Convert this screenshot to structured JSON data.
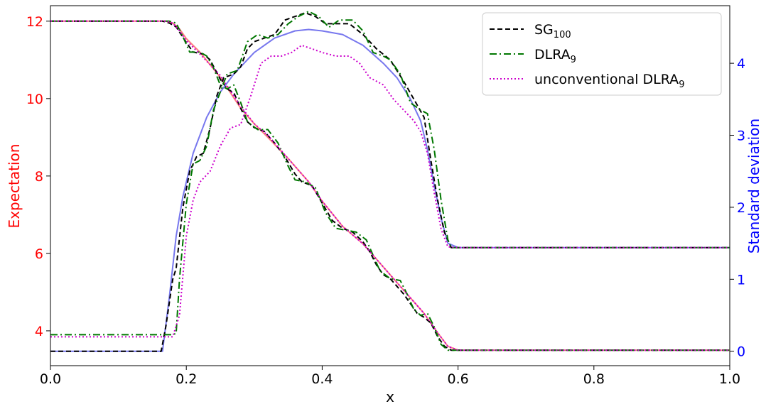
{
  "chart_data": {
    "type": "line",
    "xlabel": "x",
    "ylabel_left": "Expectation",
    "ylabel_right": "Standard deviation",
    "xlim": [
      0.0,
      1.0
    ],
    "ylim_left": [
      3.1,
      12.4
    ],
    "ylim_right": [
      -0.2,
      4.8
    ],
    "xticks": [
      {
        "value": 0.0,
        "label": "0.0"
      },
      {
        "value": 0.2,
        "label": "0.2"
      },
      {
        "value": 0.4,
        "label": "0.4"
      },
      {
        "value": 0.6,
        "label": "0.6"
      },
      {
        "value": 0.8,
        "label": "0.8"
      },
      {
        "value": 1.0,
        "label": "1.0"
      }
    ],
    "yticks_left": [
      {
        "value": 4,
        "label": "4"
      },
      {
        "value": 6,
        "label": "6"
      },
      {
        "value": 8,
        "label": "8"
      },
      {
        "value": 10,
        "label": "10"
      },
      {
        "value": 12,
        "label": "12"
      }
    ],
    "yticks_right": [
      {
        "value": 0,
        "label": "0"
      },
      {
        "value": 1,
        "label": "1"
      },
      {
        "value": 2,
        "label": "2"
      },
      {
        "value": 3,
        "label": "3"
      },
      {
        "value": 4,
        "label": "4"
      }
    ],
    "grid": false,
    "legend_placement": "top-right",
    "legend": [
      {
        "base": "SG",
        "sub": "100",
        "style": "dashed",
        "color": "#000000"
      },
      {
        "base": "DLRA",
        "sub": "9",
        "style": "dashdot",
        "color": "#007700"
      },
      {
        "base": "unconventional DLRA",
        "sub": "9",
        "style": "dotted",
        "color": "#cc00cc"
      }
    ],
    "colors": {
      "expectation_axis": "#ff0000",
      "std_axis": "#0000ff"
    },
    "series": [
      {
        "axis": "left",
        "style": "solid",
        "color": "#ff7f7f",
        "points": [
          [
            0.0,
            12.0
          ],
          [
            0.17,
            12.0
          ],
          [
            0.18,
            11.95
          ],
          [
            0.19,
            11.8
          ],
          [
            0.2,
            11.55
          ],
          [
            0.22,
            11.2
          ],
          [
            0.25,
            10.55
          ],
          [
            0.28,
            9.75
          ],
          [
            0.3,
            9.35
          ],
          [
            0.32,
            9.0
          ],
          [
            0.35,
            8.45
          ],
          [
            0.38,
            7.85
          ],
          [
            0.4,
            7.35
          ],
          [
            0.43,
            6.7
          ],
          [
            0.46,
            6.25
          ],
          [
            0.49,
            5.65
          ],
          [
            0.52,
            5.05
          ],
          [
            0.55,
            4.45
          ],
          [
            0.57,
            3.95
          ],
          [
            0.585,
            3.6
          ],
          [
            0.6,
            3.5
          ],
          [
            1.0,
            3.5
          ]
        ]
      },
      {
        "axis": "left",
        "style": "dashed",
        "color": "#000000",
        "points": [
          [
            0.0,
            12.0
          ],
          [
            0.165,
            12.0
          ],
          [
            0.175,
            11.95
          ],
          [
            0.185,
            11.85
          ],
          [
            0.2,
            11.45
          ],
          [
            0.21,
            11.2
          ],
          [
            0.225,
            11.15
          ],
          [
            0.235,
            11.0
          ],
          [
            0.25,
            10.5
          ],
          [
            0.26,
            10.25
          ],
          [
            0.27,
            10.15
          ],
          [
            0.28,
            9.75
          ],
          [
            0.29,
            9.4
          ],
          [
            0.3,
            9.25
          ],
          [
            0.315,
            9.15
          ],
          [
            0.33,
            8.85
          ],
          [
            0.345,
            8.5
          ],
          [
            0.36,
            8.05
          ],
          [
            0.37,
            7.85
          ],
          [
            0.385,
            7.75
          ],
          [
            0.4,
            7.3
          ],
          [
            0.415,
            6.85
          ],
          [
            0.43,
            6.65
          ],
          [
            0.445,
            6.55
          ],
          [
            0.46,
            6.3
          ],
          [
            0.47,
            6.05
          ],
          [
            0.48,
            5.7
          ],
          [
            0.49,
            5.45
          ],
          [
            0.5,
            5.35
          ],
          [
            0.51,
            5.15
          ],
          [
            0.52,
            4.95
          ],
          [
            0.53,
            4.7
          ],
          [
            0.54,
            4.45
          ],
          [
            0.55,
            4.35
          ],
          [
            0.56,
            4.2
          ],
          [
            0.57,
            3.85
          ],
          [
            0.58,
            3.6
          ],
          [
            0.59,
            3.5
          ],
          [
            1.0,
            3.5
          ]
        ]
      },
      {
        "axis": "left",
        "style": "dashdot",
        "color": "#007700",
        "points": [
          [
            0.0,
            12.0
          ],
          [
            0.175,
            12.0
          ],
          [
            0.185,
            11.95
          ],
          [
            0.195,
            11.6
          ],
          [
            0.205,
            11.2
          ],
          [
            0.22,
            11.2
          ],
          [
            0.23,
            11.1
          ],
          [
            0.24,
            10.8
          ],
          [
            0.25,
            10.35
          ],
          [
            0.26,
            10.25
          ],
          [
            0.27,
            10.35
          ],
          [
            0.28,
            9.9
          ],
          [
            0.29,
            9.4
          ],
          [
            0.305,
            9.2
          ],
          [
            0.32,
            9.2
          ],
          [
            0.335,
            8.85
          ],
          [
            0.35,
            8.25
          ],
          [
            0.36,
            7.9
          ],
          [
            0.375,
            7.85
          ],
          [
            0.39,
            7.7
          ],
          [
            0.405,
            7.05
          ],
          [
            0.42,
            6.65
          ],
          [
            0.435,
            6.6
          ],
          [
            0.45,
            6.55
          ],
          [
            0.465,
            6.35
          ],
          [
            0.475,
            5.95
          ],
          [
            0.485,
            5.55
          ],
          [
            0.5,
            5.35
          ],
          [
            0.515,
            5.3
          ],
          [
            0.525,
            4.95
          ],
          [
            0.535,
            4.55
          ],
          [
            0.545,
            4.4
          ],
          [
            0.555,
            4.45
          ],
          [
            0.565,
            4.1
          ],
          [
            0.575,
            3.65
          ],
          [
            0.585,
            3.5
          ],
          [
            1.0,
            3.5
          ]
        ]
      },
      {
        "axis": "left",
        "style": "dotted",
        "color": "#cc00cc",
        "points": [
          [
            0.0,
            12.0
          ],
          [
            0.17,
            12.0
          ],
          [
            0.18,
            11.95
          ],
          [
            0.19,
            11.75
          ],
          [
            0.2,
            11.5
          ],
          [
            0.22,
            11.15
          ],
          [
            0.25,
            10.6
          ],
          [
            0.28,
            9.8
          ],
          [
            0.3,
            9.35
          ],
          [
            0.32,
            9.05
          ],
          [
            0.35,
            8.45
          ],
          [
            0.38,
            7.85
          ],
          [
            0.4,
            7.35
          ],
          [
            0.43,
            6.7
          ],
          [
            0.46,
            6.25
          ],
          [
            0.49,
            5.65
          ],
          [
            0.52,
            5.05
          ],
          [
            0.55,
            4.45
          ],
          [
            0.57,
            3.95
          ],
          [
            0.585,
            3.6
          ],
          [
            0.6,
            3.5
          ],
          [
            1.0,
            3.5
          ]
        ]
      },
      {
        "axis": "right",
        "style": "solid",
        "color": "#7777ee",
        "points": [
          [
            0.0,
            0.0
          ],
          [
            0.165,
            0.0
          ],
          [
            0.175,
            0.75
          ],
          [
            0.185,
            1.6
          ],
          [
            0.195,
            2.15
          ],
          [
            0.21,
            2.75
          ],
          [
            0.23,
            3.25
          ],
          [
            0.25,
            3.6
          ],
          [
            0.27,
            3.85
          ],
          [
            0.3,
            4.15
          ],
          [
            0.33,
            4.35
          ],
          [
            0.36,
            4.45
          ],
          [
            0.38,
            4.47
          ],
          [
            0.4,
            4.45
          ],
          [
            0.43,
            4.4
          ],
          [
            0.46,
            4.25
          ],
          [
            0.49,
            4.0
          ],
          [
            0.51,
            3.8
          ],
          [
            0.53,
            3.5
          ],
          [
            0.545,
            3.2
          ],
          [
            0.555,
            2.8
          ],
          [
            0.565,
            2.3
          ],
          [
            0.575,
            1.85
          ],
          [
            0.585,
            1.5
          ],
          [
            0.6,
            1.44
          ],
          [
            1.0,
            1.44
          ]
        ]
      },
      {
        "axis": "right",
        "style": "dashed",
        "color": "#000000",
        "points": [
          [
            0.0,
            0.0
          ],
          [
            0.163,
            0.0
          ],
          [
            0.17,
            0.35
          ],
          [
            0.18,
            1.0
          ],
          [
            0.185,
            1.15
          ],
          [
            0.195,
            2.0
          ],
          [
            0.205,
            2.5
          ],
          [
            0.215,
            2.7
          ],
          [
            0.225,
            2.75
          ],
          [
            0.235,
            3.1
          ],
          [
            0.245,
            3.55
          ],
          [
            0.255,
            3.8
          ],
          [
            0.27,
            3.85
          ],
          [
            0.28,
            3.95
          ],
          [
            0.29,
            4.2
          ],
          [
            0.3,
            4.3
          ],
          [
            0.315,
            4.35
          ],
          [
            0.33,
            4.4
          ],
          [
            0.345,
            4.6
          ],
          [
            0.36,
            4.65
          ],
          [
            0.375,
            4.7
          ],
          [
            0.39,
            4.65
          ],
          [
            0.405,
            4.55
          ],
          [
            0.42,
            4.55
          ],
          [
            0.44,
            4.55
          ],
          [
            0.46,
            4.4
          ],
          [
            0.48,
            4.2
          ],
          [
            0.5,
            4.05
          ],
          [
            0.52,
            3.75
          ],
          [
            0.535,
            3.5
          ],
          [
            0.55,
            3.25
          ],
          [
            0.56,
            2.65
          ],
          [
            0.57,
            2.1
          ],
          [
            0.58,
            1.65
          ],
          [
            0.59,
            1.44
          ],
          [
            1.0,
            1.44
          ]
        ]
      },
      {
        "axis": "right",
        "style": "dashdot",
        "color": "#007700",
        "points": [
          [
            0.0,
            0.23
          ],
          [
            0.18,
            0.23
          ],
          [
            0.185,
            0.25
          ],
          [
            0.19,
            1.0
          ],
          [
            0.2,
            2.05
          ],
          [
            0.21,
            2.6
          ],
          [
            0.22,
            2.65
          ],
          [
            0.23,
            2.85
          ],
          [
            0.24,
            3.35
          ],
          [
            0.25,
            3.6
          ],
          [
            0.26,
            3.85
          ],
          [
            0.275,
            3.9
          ],
          [
            0.29,
            4.3
          ],
          [
            0.305,
            4.4
          ],
          [
            0.32,
            4.35
          ],
          [
            0.335,
            4.4
          ],
          [
            0.35,
            4.55
          ],
          [
            0.365,
            4.65
          ],
          [
            0.38,
            4.72
          ],
          [
            0.395,
            4.65
          ],
          [
            0.41,
            4.5
          ],
          [
            0.425,
            4.6
          ],
          [
            0.445,
            4.6
          ],
          [
            0.46,
            4.45
          ],
          [
            0.475,
            4.15
          ],
          [
            0.49,
            4.1
          ],
          [
            0.5,
            4.05
          ],
          [
            0.515,
            3.85
          ],
          [
            0.53,
            3.45
          ],
          [
            0.545,
            3.35
          ],
          [
            0.555,
            3.3
          ],
          [
            0.565,
            2.8
          ],
          [
            0.575,
            2.1
          ],
          [
            0.585,
            1.55
          ],
          [
            0.59,
            1.44
          ],
          [
            1.0,
            1.44
          ]
        ]
      },
      {
        "axis": "right",
        "style": "dotted",
        "color": "#cc00cc",
        "points": [
          [
            0.0,
            0.2
          ],
          [
            0.18,
            0.2
          ],
          [
            0.19,
            0.5
          ],
          [
            0.2,
            1.6
          ],
          [
            0.21,
            2.1
          ],
          [
            0.22,
            2.35
          ],
          [
            0.235,
            2.5
          ],
          [
            0.25,
            2.85
          ],
          [
            0.265,
            3.1
          ],
          [
            0.28,
            3.15
          ],
          [
            0.295,
            3.55
          ],
          [
            0.31,
            4.0
          ],
          [
            0.325,
            4.1
          ],
          [
            0.34,
            4.1
          ],
          [
            0.355,
            4.15
          ],
          [
            0.37,
            4.25
          ],
          [
            0.385,
            4.2
          ],
          [
            0.4,
            4.15
          ],
          [
            0.42,
            4.1
          ],
          [
            0.44,
            4.1
          ],
          [
            0.455,
            4.0
          ],
          [
            0.47,
            3.8
          ],
          [
            0.49,
            3.7
          ],
          [
            0.505,
            3.5
          ],
          [
            0.52,
            3.35
          ],
          [
            0.535,
            3.2
          ],
          [
            0.545,
            3.05
          ],
          [
            0.555,
            2.75
          ],
          [
            0.565,
            2.2
          ],
          [
            0.575,
            1.7
          ],
          [
            0.585,
            1.45
          ],
          [
            0.6,
            1.44
          ],
          [
            1.0,
            1.44
          ]
        ]
      }
    ]
  }
}
